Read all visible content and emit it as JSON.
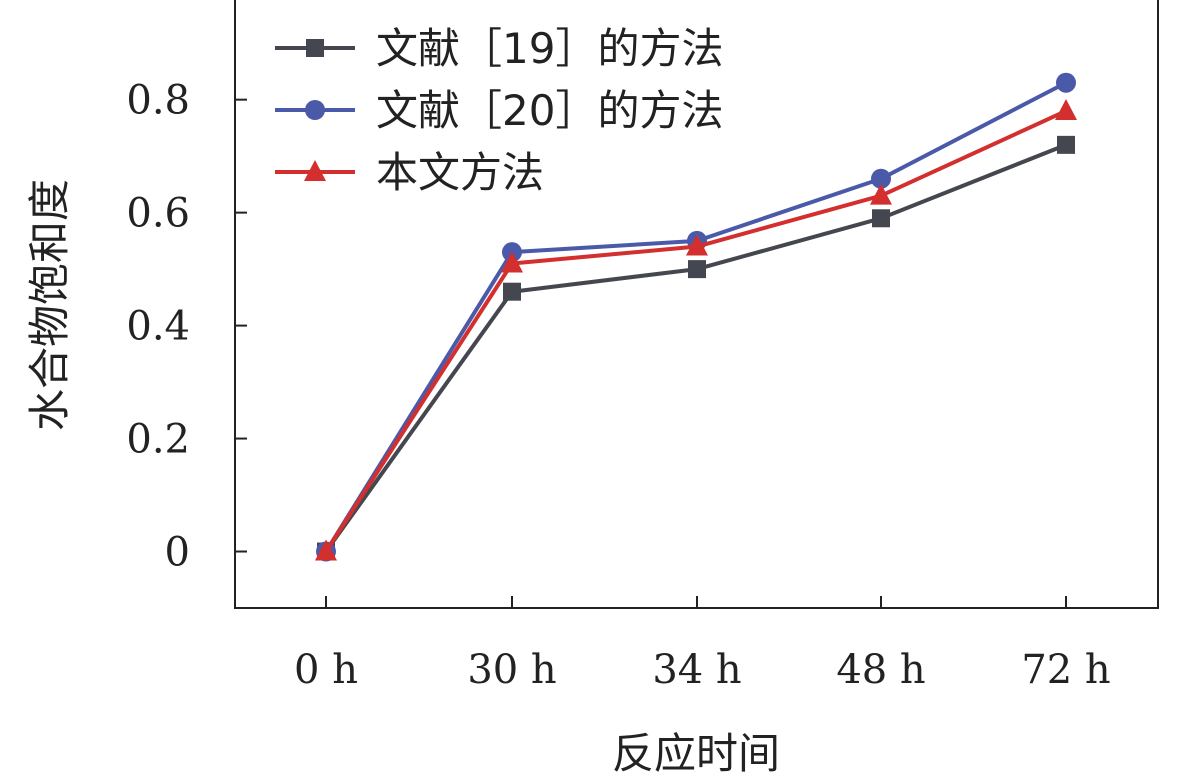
{
  "chart_data": {
    "type": "line",
    "categories": [
      "0 h",
      "30 h",
      "34 h",
      "48 h",
      "72 h"
    ],
    "xlabel": "反应时间",
    "ylabel": "水合物饱和度",
    "ylim": [
      -0.1,
      0.98
    ],
    "yticks": [
      0,
      0.2,
      0.4,
      0.6,
      0.8
    ],
    "ytick_labels": [
      "0",
      "0.2",
      "0.4",
      "0.6",
      "0.8"
    ],
    "grid": false,
    "legend_position": "top-left",
    "series": [
      {
        "name": "文献［19］的方法",
        "marker": "square",
        "color": "#44474f",
        "values": [
          0.0,
          0.46,
          0.5,
          0.59,
          0.72
        ]
      },
      {
        "name": "文献［20］的方法",
        "marker": "circle",
        "color": "#4a5aa8",
        "values": [
          0.0,
          0.53,
          0.55,
          0.66,
          0.83
        ]
      },
      {
        "name": "本文方法",
        "marker": "triangle",
        "color": "#d32f2f",
        "values": [
          0.0,
          0.51,
          0.54,
          0.63,
          0.78
        ]
      }
    ]
  }
}
